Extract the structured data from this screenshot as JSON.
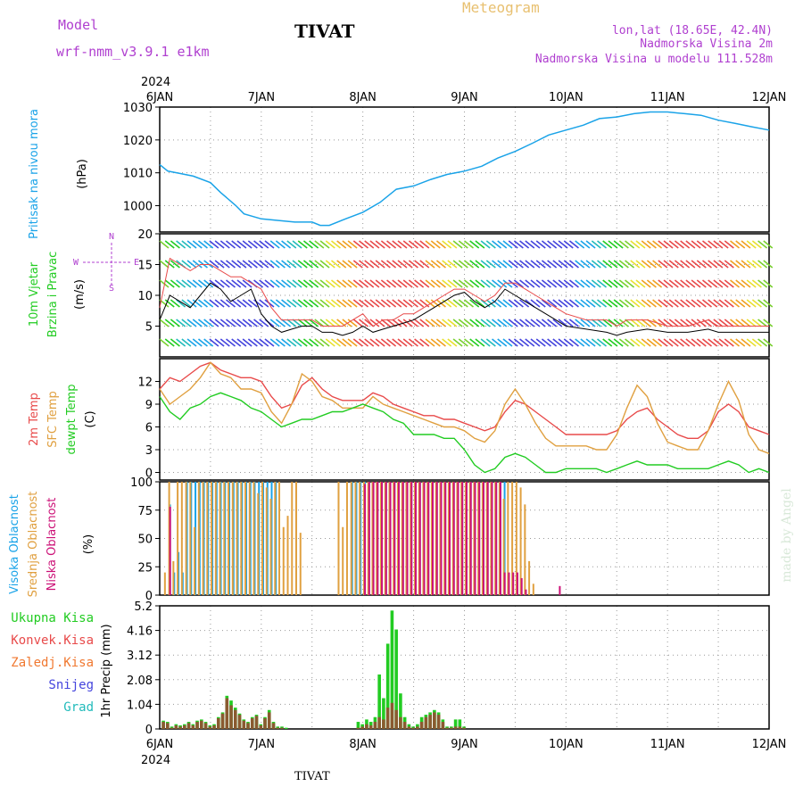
{
  "header": {
    "model_label": "Model",
    "model_name": "wrf-nmm_v3.9.1 e1km",
    "station": "TIVAT",
    "meteogram": "Meteogram",
    "lonlat": "lon,lat (18.65E, 42.4N)",
    "height": "Nadmorska Visina 2m",
    "model_height": "Nadmorska Visina u modelu 111.528m",
    "footer_station": "TIVAT",
    "credit": "made by Angel"
  },
  "colors": {
    "pressure": "#1aa3e8",
    "temp2m": "#e84a4a",
    "sfc": "#e0a040",
    "dewpt": "#22cc22",
    "high_cloud": "#1aa3e8",
    "mid_cloud": "#e0a040",
    "low_cloud": "#cc1177",
    "precip_total": "#22cc22",
    "precip_conv": "#e84a4a",
    "precip_frozen": "#f07830",
    "precip_snow": "#4444dd",
    "precip_grad": "#22bbbb",
    "purple_text": "#b040d0",
    "gold_text": "#e8c070"
  },
  "chart_data": [
    {
      "type": "line",
      "id": "pressure",
      "ylabel_1": "Pritisak na nivou mora",
      "ylabel_2": "(hPa)",
      "ylim": [
        992,
        1030
      ],
      "yticks": [
        "1000",
        "1010",
        "1020",
        "1030"
      ],
      "x_days": [
        0,
        0.08,
        0.17,
        0.33,
        0.5,
        0.6,
        0.75,
        0.83,
        1.0,
        1.17,
        1.33,
        1.5,
        1.58,
        1.67,
        1.83,
        2.0,
        2.17,
        2.33,
        2.5,
        2.67,
        2.83,
        3.0,
        3.17,
        3.33,
        3.5,
        3.67,
        3.83,
        4.0,
        4.17,
        4.33,
        4.5,
        4.67,
        4.83,
        5.0,
        5.17,
        5.33,
        5.5,
        5.67,
        5.83,
        6.0
      ],
      "values": [
        1012.5,
        1010.5,
        1010,
        1009,
        1007,
        1004,
        1000,
        997.5,
        996,
        995.5,
        995,
        995,
        994,
        994,
        996,
        998,
        1001,
        1005,
        1006,
        1008,
        1009.5,
        1010.5,
        1012,
        1014.5,
        1016.5,
        1019,
        1021.5,
        1023,
        1024.5,
        1026.5,
        1027,
        1028,
        1028.5,
        1028.5,
        1028,
        1027.5,
        1026,
        1025,
        1024,
        1023
      ]
    },
    {
      "type": "line",
      "id": "wind",
      "ylabel_1": "10m Vjetar",
      "ylabel_2": "Brzina i Pravac",
      "ylabel_3": "(m/s)",
      "compass": [
        "N",
        "W",
        "E",
        "S"
      ],
      "ylim": [
        0,
        20
      ],
      "yticks": [
        "5",
        "10",
        "15",
        "20"
      ],
      "x_days": [
        0,
        0.1,
        0.2,
        0.3,
        0.4,
        0.5,
        0.6,
        0.7,
        0.8,
        0.9,
        1.0,
        1.1,
        1.2,
        1.3,
        1.4,
        1.5,
        1.6,
        1.7,
        1.8,
        1.9,
        2.0,
        2.1,
        2.2,
        2.3,
        2.4,
        2.5,
        2.6,
        2.7,
        2.8,
        2.9,
        3.0,
        3.1,
        3.2,
        3.3,
        3.4,
        3.5,
        3.6,
        3.7,
        3.8,
        3.9,
        4.0,
        4.2,
        4.4,
        4.5,
        4.6,
        4.8,
        5.0,
        5.2,
        5.4,
        5.5,
        5.6,
        5.8,
        6.0
      ],
      "speed": [
        6,
        10,
        9,
        8,
        10,
        12,
        11,
        9,
        10,
        11,
        7,
        5,
        4,
        4.5,
        5,
        5,
        4,
        4,
        3.5,
        4,
        5,
        4,
        4.5,
        5,
        5.5,
        6,
        7,
        8,
        9,
        10,
        10.5,
        9,
        8,
        9,
        11,
        10,
        9,
        8,
        7,
        6,
        5,
        4.5,
        4,
        3.5,
        4,
        4.5,
        4,
        4,
        4.5,
        4,
        4,
        4,
        4
      ],
      "gust": [
        8,
        16,
        15,
        14,
        15,
        15,
        14,
        13,
        13,
        12,
        11,
        8,
        6,
        6,
        6,
        6,
        5,
        5,
        5,
        6,
        7,
        5,
        6,
        6,
        7,
        7,
        8,
        9,
        10,
        11,
        11,
        10,
        9,
        10,
        12,
        12,
        11,
        10,
        9,
        8,
        7,
        6,
        6,
        5,
        6,
        6,
        5,
        5,
        6,
        5,
        5,
        5,
        5
      ]
    },
    {
      "type": "line",
      "id": "temperature",
      "ylabel_1": "2m Temp",
      "ylabel_2": "SFC Temp",
      "ylabel_3": "dewpt Temp",
      "ylabel_4": "(C)",
      "ylim": [
        -1,
        15
      ],
      "yticks": [
        "0",
        "3",
        "6",
        "9",
        "12"
      ],
      "x_days": [
        0,
        0.1,
        0.2,
        0.3,
        0.4,
        0.5,
        0.6,
        0.7,
        0.8,
        0.9,
        1.0,
        1.1,
        1.2,
        1.3,
        1.4,
        1.5,
        1.6,
        1.7,
        1.8,
        1.9,
        2.0,
        2.1,
        2.2,
        2.3,
        2.4,
        2.5,
        2.6,
        2.7,
        2.8,
        2.9,
        3.0,
        3.1,
        3.2,
        3.3,
        3.4,
        3.5,
        3.6,
        3.7,
        3.8,
        3.9,
        4.0,
        4.1,
        4.2,
        4.3,
        4.4,
        4.5,
        4.6,
        4.7,
        4.8,
        4.9,
        5.0,
        5.1,
        5.2,
        5.3,
        5.4,
        5.5,
        5.6,
        5.7,
        5.8,
        5.9,
        6.0
      ],
      "series": [
        {
          "key": "temp2m",
          "values": [
            11,
            12.5,
            12,
            13,
            14,
            14.5,
            13.5,
            13,
            12.5,
            12.5,
            12,
            10,
            8.5,
            9,
            11.5,
            12.5,
            11,
            10,
            9.5,
            9.5,
            9.5,
            10.5,
            10,
            9,
            8.5,
            8,
            7.5,
            7.5,
            7,
            7,
            6.5,
            6,
            5.5,
            6,
            8,
            9.5,
            9,
            8,
            7,
            6,
            5,
            5,
            5,
            5,
            5,
            5.5,
            7,
            8,
            8.5,
            7,
            6,
            5,
            4.5,
            4.5,
            5.5,
            8,
            9,
            8,
            6,
            5.5,
            5
          ]
        },
        {
          "key": "sfc",
          "values": [
            11,
            9,
            10,
            11,
            12.5,
            14.5,
            13,
            12.5,
            11,
            11,
            10.5,
            8,
            6.5,
            9,
            13,
            12,
            10,
            9.5,
            8.5,
            8.5,
            8.5,
            10,
            9,
            8.5,
            8,
            7.5,
            7,
            6.5,
            6,
            6,
            5.5,
            4.5,
            4,
            5.5,
            9,
            11,
            9,
            6.5,
            4.5,
            3.5,
            3.5,
            3.5,
            3.5,
            3,
            3,
            5,
            8.5,
            11.5,
            10,
            6.5,
            4,
            3.5,
            3,
            3,
            5.5,
            9,
            12,
            9.5,
            5,
            3,
            2.5
          ]
        },
        {
          "key": "dewpt",
          "values": [
            10,
            8,
            7,
            8.5,
            9,
            10,
            10.5,
            10,
            9.5,
            8.5,
            8,
            7,
            6,
            6.5,
            7,
            7,
            7.5,
            8,
            8,
            8.5,
            9,
            8.5,
            8,
            7,
            6.5,
            5,
            5,
            5,
            4.5,
            4.5,
            3,
            1,
            0,
            0.5,
            2,
            2.5,
            2,
            1,
            0,
            0,
            0.5,
            0.5,
            0.5,
            0.5,
            0,
            0.5,
            1,
            1.5,
            1,
            1,
            1,
            0.5,
            0.5,
            0.5,
            0.5,
            1,
            1.5,
            1,
            0,
            0.5,
            0
          ]
        }
      ]
    },
    {
      "type": "bar",
      "id": "cloud",
      "ylabel_1": "Visoka Oblacnost",
      "ylabel_2": "Srednja Oblacnost",
      "ylabel_3": "Niska Oblacnost",
      "ylabel_4": "(%)",
      "ylim": [
        0,
        100
      ],
      "yticks": [
        "0",
        "25",
        "50",
        "75",
        "100"
      ],
      "bar_step_days": 0.0417,
      "series": [
        {
          "key": "high_cloud",
          "start_day": 0.06,
          "values": [
            0,
            80,
            20,
            38,
            20,
            100,
            100,
            100,
            100,
            100,
            100,
            100,
            100,
            100,
            100,
            100,
            100,
            100,
            100,
            100,
            100,
            100,
            100,
            100,
            100,
            100,
            100,
            0,
            0,
            0,
            0,
            0,
            0,
            0,
            0,
            0,
            0,
            0,
            0,
            0,
            0,
            0,
            0,
            0,
            100,
            100,
            100,
            100,
            100,
            100,
            100,
            100,
            100,
            100,
            100,
            100,
            100,
            100,
            100,
            100,
            100,
            100,
            100,
            100,
            100,
            100,
            100,
            100,
            100,
            100,
            100,
            100,
            100,
            100,
            100,
            100,
            100,
            100,
            100,
            100,
            100,
            0,
            0,
            0,
            0,
            0,
            0,
            0,
            0,
            0
          ]
        },
        {
          "key": "mid_cloud",
          "start_day": 0.04,
          "values": [
            20,
            100,
            30,
            100,
            100,
            100,
            100,
            60,
            100,
            100,
            100,
            100,
            100,
            100,
            100,
            100,
            100,
            100,
            100,
            100,
            100,
            100,
            90,
            100,
            95,
            85,
            100,
            100,
            60,
            70,
            100,
            100,
            55,
            0,
            0,
            0,
            0,
            0,
            0,
            0,
            0,
            100,
            60,
            100,
            100,
            100,
            100,
            100,
            100,
            100,
            100,
            100,
            100,
            100,
            100,
            100,
            100,
            100,
            100,
            100,
            100,
            100,
            100,
            100,
            100,
            100,
            100,
            100,
            100,
            100,
            100,
            100,
            100,
            100,
            100,
            100,
            100,
            100,
            100,
            100,
            85,
            100,
            100,
            100,
            95,
            80,
            30,
            10,
            0,
            0
          ]
        },
        {
          "key": "low_cloud",
          "start_day": 0.08,
          "values": [
            78,
            0,
            0,
            0,
            0,
            0,
            0,
            0,
            0,
            0,
            0,
            0,
            0,
            0,
            0,
            0,
            0,
            0,
            0,
            0,
            0,
            0,
            0,
            0,
            0,
            0,
            0,
            0,
            0,
            0,
            0,
            0,
            0,
            0,
            0,
            0,
            0,
            0,
            0,
            0,
            0,
            0,
            0,
            0,
            0,
            0,
            98,
            100,
            100,
            100,
            100,
            100,
            100,
            100,
            100,
            100,
            100,
            100,
            100,
            100,
            100,
            100,
            100,
            100,
            100,
            100,
            100,
            100,
            100,
            100,
            100,
            100,
            100,
            100,
            100,
            100,
            100,
            100,
            100,
            20,
            20,
            20,
            20,
            15,
            5,
            0,
            0,
            0,
            0,
            0,
            0,
            0,
            8,
            0,
            0,
            0,
            0,
            0
          ]
        }
      ]
    },
    {
      "type": "bar",
      "id": "precip",
      "legend": [
        "Ukupna Kisa",
        "Konvek.Kisa",
        "Zaledj.Kisa",
        "Snijeg",
        "Grad"
      ],
      "ylabel": "1hr Precip (mm)",
      "ylim": [
        0,
        5.2
      ],
      "yticks": [
        "0",
        "1.04",
        "2.08",
        "3.12",
        "4.16",
        "5.2"
      ],
      "bar_step_days": 0.0417,
      "start_day": 0.02,
      "total": [
        0.35,
        0.3,
        0.1,
        0.2,
        0.15,
        0.2,
        0.3,
        0.2,
        0.35,
        0.4,
        0.3,
        0.15,
        0.2,
        0.5,
        0.7,
        1.4,
        1.2,
        0.9,
        0.65,
        0.4,
        0.3,
        0.5,
        0.6,
        0.2,
        0.5,
        0.8,
        0.3,
        0.1,
        0.1,
        0.05,
        0,
        0,
        0,
        0,
        0,
        0,
        0,
        0,
        0,
        0,
        0,
        0,
        0,
        0,
        0,
        0,
        0.3,
        0.2,
        0.4,
        0.3,
        0.5,
        2.3,
        1.3,
        3.6,
        5.0,
        4.2,
        1.5,
        0.5,
        0.2,
        0.1,
        0.2,
        0.5,
        0.6,
        0.7,
        0.8,
        0.7,
        0.4,
        0.1,
        0.1,
        0.4,
        0.4,
        0.1
      ],
      "convective": [
        0.3,
        0.25,
        0.05,
        0.15,
        0.1,
        0.15,
        0.25,
        0.15,
        0.3,
        0.35,
        0.25,
        0.1,
        0.15,
        0.45,
        0.65,
        1.3,
        1.0,
        0.8,
        0.6,
        0.35,
        0.25,
        0.45,
        0.55,
        0.15,
        0.45,
        0.7,
        0.25,
        0.05,
        0.05,
        0,
        0,
        0,
        0,
        0,
        0,
        0,
        0,
        0,
        0,
        0,
        0,
        0,
        0,
        0,
        0,
        0,
        0.05,
        0.1,
        0.2,
        0.15,
        0.3,
        0.5,
        0.4,
        0.9,
        1.1,
        0.8,
        0.5,
        0.3,
        0.1,
        0.05,
        0.1,
        0.3,
        0.5,
        0.6,
        0.7,
        0.6,
        0.3,
        0.05,
        0.05,
        0.1,
        0.1,
        0.05
      ]
    }
  ],
  "time_axis": {
    "labels": [
      "6JAN",
      "7JAN",
      "8JAN",
      "9JAN",
      "10JAN",
      "11JAN",
      "12JAN"
    ],
    "year": "2024",
    "days": 6
  }
}
